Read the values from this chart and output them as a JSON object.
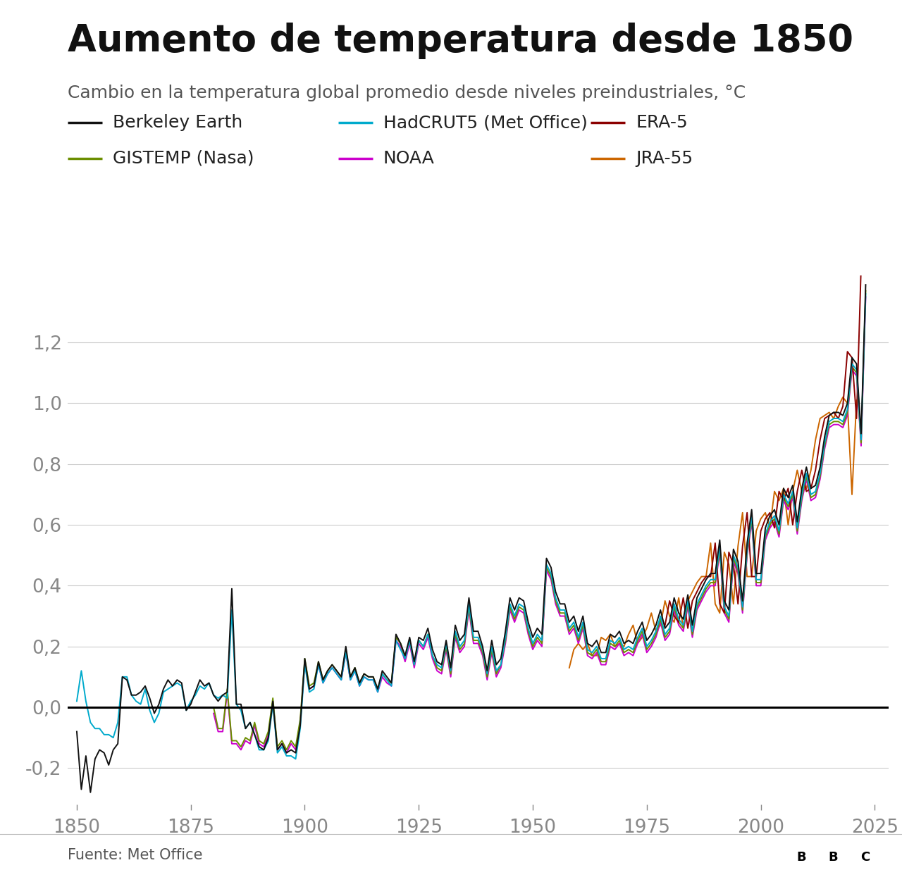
{
  "title": "Aumento de temperatura desde 1850",
  "subtitle": "Cambio en la temperatura global promedio desde niveles preindustriales, °C",
  "source": "Fuente: Met Office",
  "xlim": [
    1848,
    2028
  ],
  "ylim": [
    -0.32,
    1.42
  ],
  "yticks": [
    -0.2,
    0.0,
    0.2,
    0.4,
    0.6,
    0.8,
    1.0,
    1.2
  ],
  "xticks": [
    1850,
    1875,
    1900,
    1925,
    1950,
    1975,
    2000,
    2025
  ],
  "series": {
    "Berkeley Earth": {
      "color": "#111111",
      "lw": 1.4,
      "zorder": 6
    },
    "HadCRUT5 (Met Office)": {
      "color": "#00AACC",
      "lw": 1.4,
      "zorder": 5
    },
    "ERA-5": {
      "color": "#8B0000",
      "lw": 1.4,
      "zorder": 4
    },
    "GISTEMP (Nasa)": {
      "color": "#6B8E00",
      "lw": 1.4,
      "zorder": 3
    },
    "NOAA": {
      "color": "#CC00CC",
      "lw": 1.4,
      "zorder": 2
    },
    "JRA-55": {
      "color": "#CC6600",
      "lw": 1.4,
      "zorder": 2
    }
  },
  "background_color": "#FFFFFF",
  "grid_color": "#CCCCCC",
  "tick_color": "#888888",
  "label_color": "#222222",
  "title_color": "#111111",
  "figsize": [
    12.8,
    12.62
  ],
  "dpi": 100
}
